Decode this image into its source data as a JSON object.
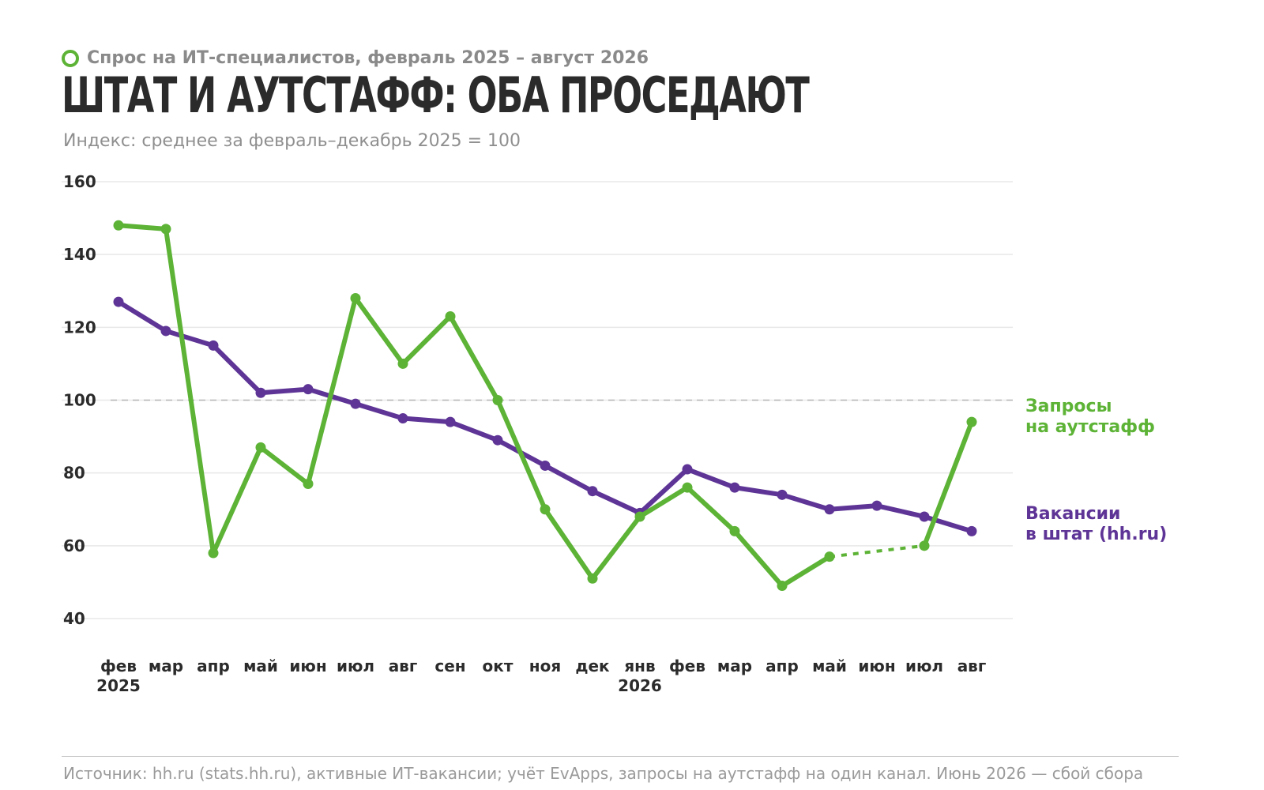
{
  "kicker": "Спрос на ИТ-специалистов, февраль 2025 – август 2026",
  "title": "Штат и аутстафф: оба проседают",
  "subtitle": "Индекс: среднее за февраль–декабрь 2025 = 100",
  "footer": "Источник: hh.ru (stats.hh.ru), активные ИТ-вакансии; учёт EvApps, запросы на аутстафф на один канал. Июнь 2026 — сбой сбора",
  "colors": {
    "outstaff": "#5db336",
    "staff": "#5e3596",
    "grid": "#e8e8e8",
    "reference": "#b5b5b5"
  },
  "chart_data": {
    "type": "line",
    "categories": [
      "фев",
      "мар",
      "апр",
      "май",
      "июн",
      "июл",
      "авг",
      "сен",
      "окт",
      "ноя",
      "дек",
      "янв",
      "фев",
      "мар",
      "апр",
      "май",
      "июн",
      "июл",
      "авг"
    ],
    "year_labels": [
      {
        "index": 0,
        "label": "2025"
      },
      {
        "index": 11,
        "label": "2026"
      }
    ],
    "yticks": [
      40,
      60,
      80,
      100,
      120,
      140,
      160
    ],
    "ylim": [
      40,
      160
    ],
    "reference_line": 100,
    "grid": true,
    "series": [
      {
        "name": "Запросы на аутстафф",
        "name_lines": [
          "Запросы",
          "на аутстафф"
        ],
        "color": "#5db336",
        "values": [
          148,
          147,
          58,
          87,
          77,
          128,
          110,
          123,
          100,
          70,
          51,
          68,
          76,
          64,
          49,
          57,
          null,
          60,
          94
        ],
        "gap_between": [
          15,
          17
        ]
      },
      {
        "name": "Вакансии в штат (hh.ru)",
        "name_lines": [
          "Вакансии",
          "в штат (hh.ru)"
        ],
        "color": "#5e3596",
        "values": [
          127,
          119,
          115,
          102,
          103,
          99,
          95,
          94,
          89,
          82,
          75,
          69,
          81,
          76,
          74,
          70,
          71,
          68,
          64
        ]
      }
    ]
  }
}
